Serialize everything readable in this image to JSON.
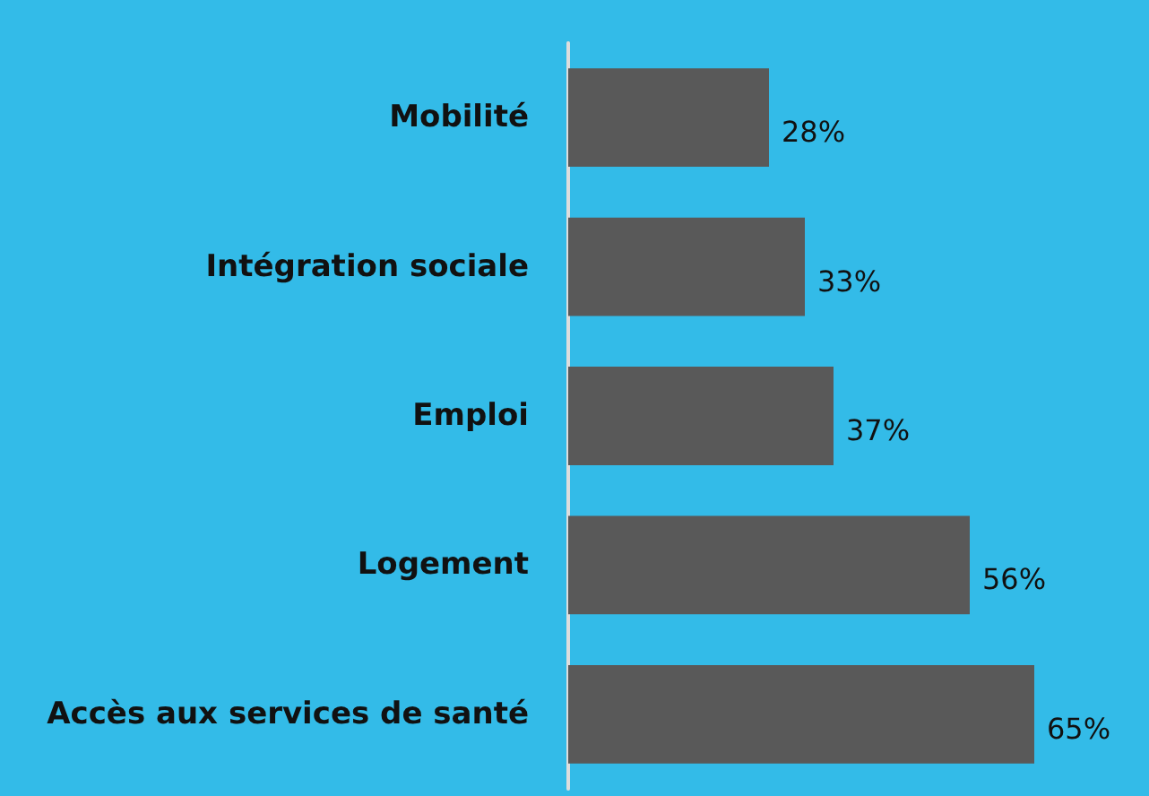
{
  "chart_data": {
    "type": "bar",
    "orientation": "horizontal",
    "categories": [
      "Mobilité",
      "Intégration sociale",
      "Emploi",
      "Logement",
      "Accès aux services de santé"
    ],
    "values": [
      28,
      33,
      37,
      56,
      65
    ],
    "value_labels": [
      "28%",
      "33%",
      "37%",
      "56%",
      "65%"
    ],
    "color": "#595959",
    "grid": false,
    "tick_labels": "y"
  }
}
